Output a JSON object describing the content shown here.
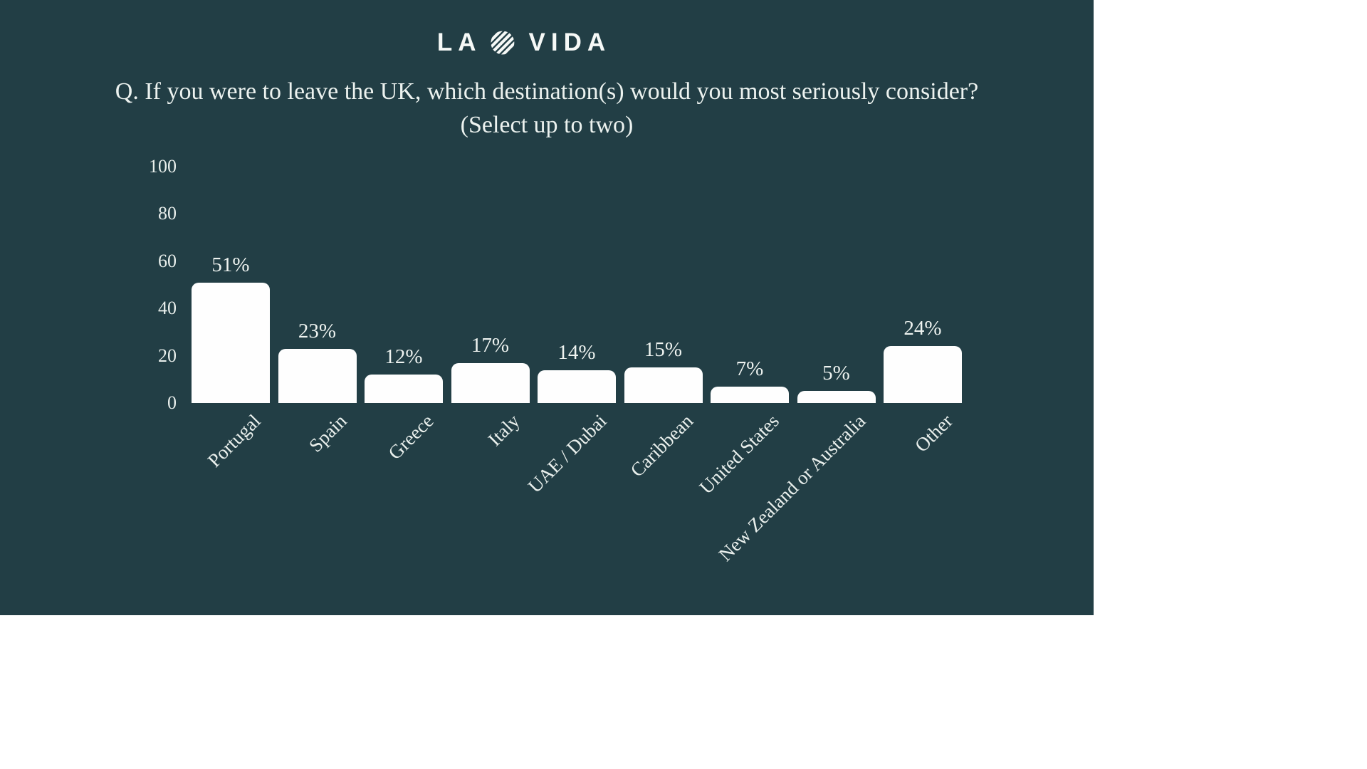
{
  "colors": {
    "page_background": "#ffffff",
    "slide_background": "#223e45",
    "text": "#ecf2ef",
    "bar": "#ffffff"
  },
  "logo": {
    "part1": "LA",
    "part2": "VIDA",
    "icon": "striped-circle"
  },
  "title": {
    "line1": "Q. If you were to leave the UK, which destination(s) would you most seriously consider?",
    "line2": "(Select up to two)"
  },
  "chart_data": {
    "type": "bar",
    "title": "Q. If you were to leave the UK, which destination(s) would you most seriously consider? (Select up to two)",
    "categories": [
      "Portugal",
      "Spain",
      "Greece",
      "Italy",
      "UAE / Dubai",
      "Caribbean",
      "United States",
      "New Zealand or Australia",
      "Other"
    ],
    "values": [
      51,
      23,
      12,
      17,
      14,
      15,
      7,
      5,
      24
    ],
    "value_labels": [
      "51%",
      "23%",
      "12%",
      "17%",
      "14%",
      "15%",
      "7%",
      "5%",
      "24%"
    ],
    "y_ticks": [
      "0",
      "20",
      "40",
      "60",
      "80",
      "100"
    ],
    "ylim": [
      0,
      100
    ],
    "xlabel": "",
    "ylabel": "",
    "grid": false,
    "legend": false,
    "bar_style": "rounded-top",
    "category_label_rotation_deg": 45
  }
}
